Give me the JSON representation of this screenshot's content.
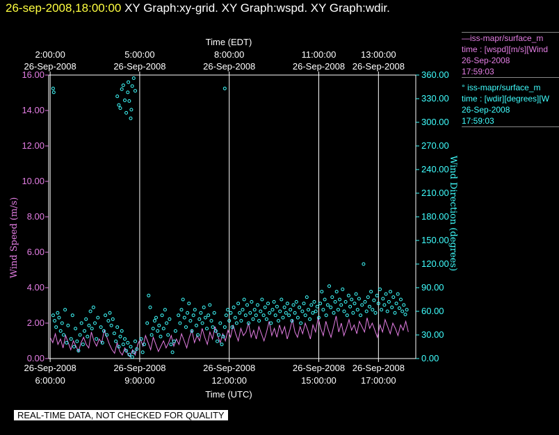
{
  "header": {
    "datetime": "26-sep-2008,18:00:00",
    "titles": "XY Graph:xy-grid.  XY Graph:wspd.  XY Graph:wdir."
  },
  "legend": {
    "wspd": {
      "title": "—iss-mapr/surface_m",
      "line2": "time : [wspd][m/s][Wind",
      "line3": "26-Sep-2008",
      "line4": "17:59:03"
    },
    "wdir": {
      "title": "° iss-mapr/surface_m",
      "line2": "time : [wdir][degrees][W",
      "line3": "26-Sep-2008",
      "line4": "17:59:03"
    }
  },
  "banner": "REAL-TIME DATA, NOT CHECKED FOR QUALITY",
  "colors": {
    "wspd": "#e47ee4",
    "wdir": "#40ffff",
    "date": "#ffff40",
    "grid": "#ffffff"
  },
  "chart_data": {
    "type": "scatter",
    "title": "",
    "x_bottom": {
      "label": "Time (UTC)",
      "range_utc_hours": [
        5.95,
        18.25
      ],
      "ticks": [
        {
          "at": 6,
          "date": "26-Sep-2008",
          "time": "6:00:00"
        },
        {
          "at": 9,
          "date": "26-Sep-2008",
          "time": "9:00:00"
        },
        {
          "at": 12,
          "date": "26-Sep-2008",
          "time": "12:00:00"
        },
        {
          "at": 15,
          "date": "26-Sep-2008",
          "time": "15:00:00"
        },
        {
          "at": 17,
          "date": "26-Sep-2008",
          "time": "17:00:00"
        }
      ]
    },
    "x_top": {
      "label": "Time (EDT)",
      "ticks": [
        {
          "at": 6,
          "time": "2:00:00",
          "date": "26-Sep-2008"
        },
        {
          "at": 9,
          "time": "5:00:00",
          "date": "26-Sep-2008"
        },
        {
          "at": 12,
          "time": "8:00:00",
          "date": "26-Sep-2008"
        },
        {
          "at": 15,
          "time": "11:00:00",
          "date": "26-Sep-2008"
        },
        {
          "at": 17,
          "time": "13:00:00",
          "date": "26-Sep-2008"
        }
      ]
    },
    "y_left": {
      "label": "Wind Speed (m/s)",
      "range": [
        0,
        16
      ],
      "ticks": [
        "0.00",
        "2.00",
        "4.00",
        "6.00",
        "8.00",
        "10.00",
        "12.00",
        "14.00",
        "16.00"
      ]
    },
    "y_right": {
      "label": "Wind Direction (degrees)",
      "range": [
        0,
        360
      ],
      "ticks": [
        "0.00",
        "30.00",
        "60.00",
        "90.00",
        "120.00",
        "150.00",
        "180.00",
        "210.00",
        "240.00",
        "270.00",
        "300.00",
        "330.00",
        "360.00"
      ]
    },
    "grid": "vertical at bottom ticks",
    "series": [
      {
        "key": "wspd",
        "style": "line",
        "axis": "left",
        "x_start": 6.0,
        "x_end": 18.0,
        "values": [
          1.2,
          0.9,
          1.4,
          0.8,
          1.1,
          0.6,
          1.3,
          0.9,
          0.5,
          1.0,
          0.7,
          0.4,
          0.9,
          1.2,
          0.8,
          0.6,
          1.5,
          1.0,
          0.7,
          1.1,
          0.9,
          1.6,
          1.2,
          0.8,
          0.5,
          0.3,
          0.9,
          0.4,
          0.2,
          0.6,
          0.3,
          0.1,
          0.5,
          0.2,
          0.8,
          1.1,
          0.7,
          1.3,
          0.9,
          0.5,
          1.2,
          0.8,
          0.4,
          0.7,
          1.0,
          0.6,
          0.9,
          1.3,
          0.7,
          1.1,
          0.8,
          1.4,
          1.0,
          0.6,
          1.2,
          1.6,
          0.9,
          1.3,
          1.0,
          1.7,
          1.2,
          0.8,
          1.5,
          1.1,
          1.8,
          1.3,
          0.9,
          1.4,
          1.0,
          1.6,
          1.2,
          1.9,
          1.4,
          1.0,
          1.7,
          1.3,
          1.5,
          2.0,
          1.2,
          1.6,
          1.1,
          1.8,
          1.4,
          1.0,
          1.5,
          2.1,
          1.3,
          1.7,
          1.2,
          1.9,
          1.4,
          1.8,
          1.1,
          1.6,
          2.2,
          1.5,
          1.2,
          1.8,
          1.4,
          2.0,
          1.6,
          1.1,
          1.9,
          1.5,
          2.3,
          1.7,
          1.3,
          2.1,
          1.6,
          1.2,
          1.8,
          2.4,
          1.5,
          2.0,
          1.3,
          1.7,
          2.2,
          1.6,
          1.9,
          1.4,
          2.1,
          1.8,
          1.5,
          2.3,
          1.7,
          2.0,
          1.6,
          1.2,
          1.9,
          1.5,
          2.2,
          1.8,
          1.4,
          2.0,
          1.7,
          1.3,
          1.9,
          1.6,
          2.1,
          1.5
        ]
      },
      {
        "key": "wdir",
        "style": "circles",
        "axis": "right",
        "points": [
          [
            6.1,
            55
          ],
          [
            6.15,
            48
          ],
          [
            6.2,
            40
          ],
          [
            6.25,
            58
          ],
          [
            6.3,
            52
          ],
          [
            6.35,
            35
          ],
          [
            6.4,
            45
          ],
          [
            6.45,
            30
          ],
          [
            6.5,
            62
          ],
          [
            6.55,
            20
          ],
          [
            6.6,
            42
          ],
          [
            6.7,
            25
          ],
          [
            6.75,
            55
          ],
          [
            6.8,
            15
          ],
          [
            6.85,
            38
          ],
          [
            6.9,
            22
          ],
          [
            6.95,
            10
          ],
          [
            7.0,
            30
          ],
          [
            7.05,
            45
          ],
          [
            7.1,
            18
          ],
          [
            7.15,
            35
          ],
          [
            7.2,
            50
          ],
          [
            7.25,
            28
          ],
          [
            7.3,
            42
          ],
          [
            7.35,
            60
          ],
          [
            7.4,
            38
          ],
          [
            7.45,
            65
          ],
          [
            7.5,
            45
          ],
          [
            7.55,
            25
          ],
          [
            7.6,
            52
          ],
          [
            7.7,
            40
          ],
          [
            7.75,
            20
          ],
          [
            7.8,
            35
          ],
          [
            7.85,
            55
          ],
          [
            7.9,
            30
          ],
          [
            7.95,
            48
          ],
          [
            8.0,
            58
          ],
          [
            8.05,
            42
          ],
          [
            8.1,
            50
          ],
          [
            8.15,
            32
          ],
          [
            8.2,
            22
          ],
          [
            8.25,
            40
          ],
          [
            8.3,
            15
          ],
          [
            8.35,
            28
          ],
          [
            8.4,
            35
          ],
          [
            8.45,
            18
          ],
          [
            8.5,
            25
          ],
          [
            8.55,
            10
          ],
          [
            8.6,
            20
          ],
          [
            8.65,
            5
          ],
          [
            8.7,
            15
          ],
          [
            8.75,
            2
          ],
          [
            8.8,
            8
          ],
          [
            8.85,
            22
          ],
          [
            8.9,
            12
          ],
          [
            9.05,
            25
          ],
          [
            9.1,
            8
          ],
          [
            9.15,
            18
          ],
          [
            9.25,
            45
          ],
          [
            9.3,
            80
          ],
          [
            9.35,
            65
          ],
          [
            9.4,
            30
          ],
          [
            9.45,
            38
          ],
          [
            9.5,
            48
          ],
          [
            9.55,
            52
          ],
          [
            9.6,
            35
          ],
          [
            9.65,
            42
          ],
          [
            9.7,
            28
          ],
          [
            9.75,
            55
          ],
          [
            9.8,
            38
          ],
          [
            9.85,
            62
          ],
          [
            9.9,
            45
          ],
          [
            9.95,
            30
          ],
          [
            10.0,
            50
          ],
          [
            10.05,
            18
          ],
          [
            10.1,
            8
          ],
          [
            10.15,
            22
          ],
          [
            10.2,
            35
          ],
          [
            10.3,
            55
          ],
          [
            10.35,
            45
          ],
          [
            10.4,
            62
          ],
          [
            10.45,
            75
          ],
          [
            10.5,
            52
          ],
          [
            10.55,
            40
          ],
          [
            10.6,
            58
          ],
          [
            10.65,
            70
          ],
          [
            10.7,
            48
          ],
          [
            10.75,
            35
          ],
          [
            10.8,
            55
          ],
          [
            10.85,
            62
          ],
          [
            10.9,
            42
          ],
          [
            10.95,
            30
          ],
          [
            11.0,
            50
          ],
          [
            11.05,
            58
          ],
          [
            11.1,
            45
          ],
          [
            11.15,
            65
          ],
          [
            11.2,
            52
          ],
          [
            11.25,
            38
          ],
          [
            11.3,
            55
          ],
          [
            11.35,
            68
          ],
          [
            11.4,
            48
          ],
          [
            11.45,
            40
          ],
          [
            11.5,
            58
          ],
          [
            11.55,
            35
          ],
          [
            11.6,
            22
          ],
          [
            11.65,
            30
          ],
          [
            11.7,
            45
          ],
          [
            11.75,
            18
          ],
          [
            11.8,
            28
          ],
          [
            11.85,
            40
          ],
          [
            11.9,
            55
          ],
          [
            11.95,
            62
          ],
          [
            12.0,
            48
          ],
          [
            12.05,
            58
          ],
          [
            12.1,
            40
          ],
          [
            12.15,
            65
          ],
          [
            12.2,
            52
          ],
          [
            12.25,
            45
          ],
          [
            12.3,
            70
          ],
          [
            12.35,
            58
          ],
          [
            12.4,
            48
          ],
          [
            12.45,
            62
          ],
          [
            12.5,
            75
          ],
          [
            12.55,
            55
          ],
          [
            12.6,
            68
          ],
          [
            12.65,
            45
          ],
          [
            12.7,
            58
          ],
          [
            12.75,
            72
          ],
          [
            12.8,
            50
          ],
          [
            12.85,
            62
          ],
          [
            12.9,
            55
          ],
          [
            12.95,
            68
          ],
          [
            13.0,
            48
          ],
          [
            13.05,
            60
          ],
          [
            13.1,
            75
          ],
          [
            13.15,
            55
          ],
          [
            13.2,
            65
          ],
          [
            13.25,
            50
          ],
          [
            13.3,
            70
          ],
          [
            13.35,
            58
          ],
          [
            13.4,
            45
          ],
          [
            13.45,
            62
          ],
          [
            13.5,
            72
          ],
          [
            13.55,
            55
          ],
          [
            13.6,
            66
          ],
          [
            13.65,
            48
          ],
          [
            13.7,
            60
          ],
          [
            13.75,
            75
          ],
          [
            13.8,
            52
          ],
          [
            13.85,
            65
          ],
          [
            13.9,
            58
          ],
          [
            13.95,
            70
          ],
          [
            14.0,
            55
          ],
          [
            14.05,
            62
          ],
          [
            14.1,
            48
          ],
          [
            14.15,
            68
          ],
          [
            14.2,
            58
          ],
          [
            14.25,
            72
          ],
          [
            14.3,
            52
          ],
          [
            14.35,
            65
          ],
          [
            14.4,
            45
          ],
          [
            14.45,
            60
          ],
          [
            14.5,
            70
          ],
          [
            14.55,
            55
          ],
          [
            14.6,
            78
          ],
          [
            14.65,
            62
          ],
          [
            14.7,
            50
          ],
          [
            14.75,
            68
          ],
          [
            14.8,
            58
          ],
          [
            14.85,
            72
          ],
          [
            14.9,
            60
          ],
          [
            14.95,
            66
          ],
          [
            15.0,
            52
          ],
          [
            15.05,
            70
          ],
          [
            15.1,
            85
          ],
          [
            15.15,
            62
          ],
          [
            15.2,
            75
          ],
          [
            15.25,
            55
          ],
          [
            15.3,
            68
          ],
          [
            15.35,
            92
          ],
          [
            15.4,
            65
          ],
          [
            15.45,
            78
          ],
          [
            15.5,
            58
          ],
          [
            15.55,
            72
          ],
          [
            15.6,
            85
          ],
          [
            15.65,
            62
          ],
          [
            15.7,
            75
          ],
          [
            15.75,
            68
          ],
          [
            15.8,
            88
          ],
          [
            15.85,
            60
          ],
          [
            15.9,
            72
          ],
          [
            15.95,
            55
          ],
          [
            16.0,
            80
          ],
          [
            16.05,
            66
          ],
          [
            16.1,
            75
          ],
          [
            16.15,
            58
          ],
          [
            16.2,
            70
          ],
          [
            16.25,
            82
          ],
          [
            16.3,
            62
          ],
          [
            16.35,
            76
          ],
          [
            16.4,
            55
          ],
          [
            16.45,
            68
          ],
          [
            16.5,
            120
          ],
          [
            16.55,
            72
          ],
          [
            16.6,
            60
          ],
          [
            16.65,
            78
          ],
          [
            16.7,
            66
          ],
          [
            16.75,
            85
          ],
          [
            16.8,
            62
          ],
          [
            16.85,
            74
          ],
          [
            16.9,
            58
          ],
          [
            16.95,
            80
          ],
          [
            17.0,
            70
          ],
          [
            17.05,
            88
          ],
          [
            17.1,
            62
          ],
          [
            17.15,
            76
          ],
          [
            17.2,
            68
          ],
          [
            17.25,
            82
          ],
          [
            17.3,
            60
          ],
          [
            17.35,
            72
          ],
          [
            17.4,
            85
          ],
          [
            17.45,
            65
          ],
          [
            17.5,
            78
          ],
          [
            17.55,
            58
          ],
          [
            17.6,
            70
          ],
          [
            17.65,
            82
          ],
          [
            17.7,
            64
          ],
          [
            17.75,
            75
          ],
          [
            17.8,
            60
          ],
          [
            17.85,
            68
          ],
          [
            17.9,
            56
          ],
          [
            17.95,
            62
          ],
          [
            6.1,
            343
          ],
          [
            6.12,
            338
          ],
          [
            8.25,
            333
          ],
          [
            8.3,
            322
          ],
          [
            8.35,
            318
          ],
          [
            8.4,
            342
          ],
          [
            8.45,
            347
          ],
          [
            8.5,
            328
          ],
          [
            8.55,
            312
          ],
          [
            8.6,
            338
          ],
          [
            8.62,
            351
          ],
          [
            8.65,
            327
          ],
          [
            8.7,
            305
          ],
          [
            8.72,
            316
          ],
          [
            8.75,
            346
          ],
          [
            8.8,
            356
          ],
          [
            8.85,
            340
          ],
          [
            11.85,
            343
          ]
        ]
      }
    ]
  }
}
